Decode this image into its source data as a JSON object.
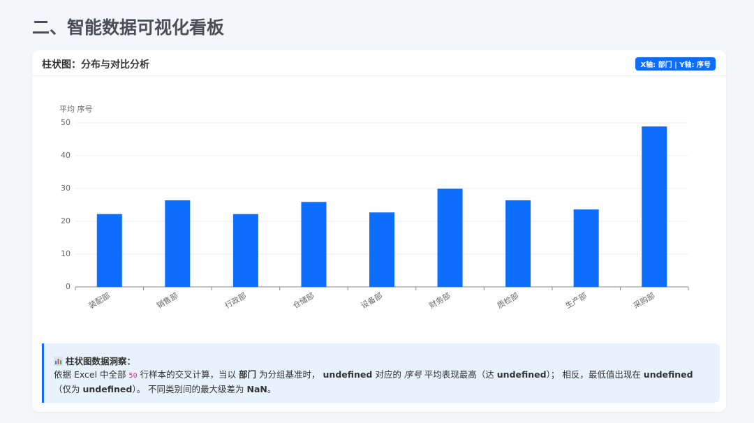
{
  "page": {
    "title": "二、智能数据可视化看板"
  },
  "card": {
    "title": "柱状图：分布与对比分析",
    "badge": "X轴: 部门 | Y轴: 序号"
  },
  "chart_data": {
    "type": "bar",
    "y_axis_label": "平均 序号",
    "categories": [
      "装配部",
      "销售部",
      "行政部",
      "仓储部",
      "设备部",
      "财务部",
      "质检部",
      "生产部",
      "采购部"
    ],
    "values": [
      22.2,
      26.4,
      22.2,
      25.9,
      22.7,
      29.9,
      26.4,
      23.6,
      48.9
    ],
    "color": "#0d6efd",
    "ylim": [
      0,
      50
    ],
    "yticks": [
      0,
      10,
      20,
      30,
      40,
      50
    ],
    "grid": true
  },
  "insight": {
    "heading": "柱状图数据洞察：",
    "segments": [
      "依据 Excel 中全部 ",
      "50",
      " 行样本的交叉计算，当以 ",
      "部门",
      " 为分组基准时， ",
      "undefined",
      " 对应的 ",
      "序号",
      " 平均表现最高（达 ",
      "undefined",
      "）； 相反，最低值出现在 ",
      "undefined",
      "（仅为 ",
      "undefined",
      "）。 不同类别间的最大级差为 ",
      "NaN",
      "。"
    ]
  }
}
